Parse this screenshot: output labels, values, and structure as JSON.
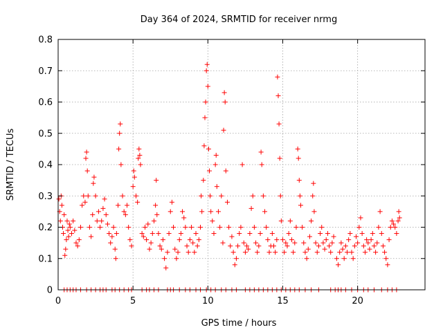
{
  "chart_data": {
    "type": "scatter",
    "title": "Day 364 of 2024, SRMTID for receiver nrmg",
    "xlabel": "GPS time / hours",
    "ylabel": "SRMTID / TECUs",
    "xlim": [
      0,
      24.5
    ],
    "ylim": [
      0,
      0.8
    ],
    "xticks": [
      0,
      5,
      10,
      15,
      20
    ],
    "xtick_labels": [
      "0",
      "5",
      "10",
      "15",
      "20"
    ],
    "yticks": [
      0,
      0.1,
      0.2,
      0.3,
      0.4,
      0.5,
      0.6,
      0.7,
      0.8
    ],
    "ytick_labels": [
      "0",
      "0.1",
      "0.2",
      "0.3",
      "0.4",
      "0.5",
      "0.6",
      "0.7",
      "0.8"
    ],
    "grid": true,
    "marker": "plus",
    "color": "#ff0000",
    "series": [
      {
        "name": "SRMTID",
        "points": [
          [
            0.05,
            0.29
          ],
          [
            0.1,
            0.25
          ],
          [
            0.15,
            0.22
          ],
          [
            0.2,
            0.3
          ],
          [
            0.25,
            0.27
          ],
          [
            0.3,
            0.2
          ],
          [
            0.35,
            0.18
          ],
          [
            0.4,
            0.24
          ],
          [
            0.45,
            0.11
          ],
          [
            0.5,
            0.13
          ],
          [
            0.55,
            0.16
          ],
          [
            0.6,
            0.22
          ],
          [
            0.65,
            0.19
          ],
          [
            0.7,
            0.17
          ],
          [
            0.75,
            0.21
          ],
          [
            0.8,
            0.2
          ],
          [
            0.9,
            0.18
          ],
          [
            1.0,
            0.22
          ],
          [
            1.1,
            0.19
          ],
          [
            1.2,
            0.15
          ],
          [
            1.3,
            0.14
          ],
          [
            1.4,
            0.16
          ],
          [
            1.5,
            0.2
          ],
          [
            1.6,
            0.27
          ],
          [
            1.7,
            0.3
          ],
          [
            1.8,
            0.28
          ],
          [
            1.85,
            0.42
          ],
          [
            1.9,
            0.44
          ],
          [
            1.95,
            0.38
          ],
          [
            2.0,
            0.3
          ],
          [
            2.1,
            0.2
          ],
          [
            2.2,
            0.17
          ],
          [
            2.3,
            0.24
          ],
          [
            2.35,
            0.34
          ],
          [
            2.4,
            0.36
          ],
          [
            2.5,
            0.3
          ],
          [
            2.6,
            0.22
          ],
          [
            2.7,
            0.25
          ],
          [
            2.8,
            0.2
          ],
          [
            2.9,
            0.22
          ],
          [
            3.0,
            0.26
          ],
          [
            3.1,
            0.29
          ],
          [
            3.2,
            0.24
          ],
          [
            3.3,
            0.21
          ],
          [
            3.4,
            0.18
          ],
          [
            3.5,
            0.15
          ],
          [
            3.6,
            0.17
          ],
          [
            3.7,
            0.2
          ],
          [
            3.8,
            0.13
          ],
          [
            3.85,
            0.1
          ],
          [
            3.9,
            0.18
          ],
          [
            4.0,
            0.27
          ],
          [
            4.05,
            0.45
          ],
          [
            4.1,
            0.5
          ],
          [
            4.15,
            0.53
          ],
          [
            4.2,
            0.4
          ],
          [
            4.3,
            0.3
          ],
          [
            4.4,
            0.25
          ],
          [
            4.5,
            0.24
          ],
          [
            4.6,
            0.27
          ],
          [
            4.7,
            0.2
          ],
          [
            4.8,
            0.16
          ],
          [
            4.9,
            0.14
          ],
          [
            5.0,
            0.33
          ],
          [
            5.05,
            0.38
          ],
          [
            5.1,
            0.36
          ],
          [
            5.2,
            0.3
          ],
          [
            5.3,
            0.28
          ],
          [
            5.35,
            0.42
          ],
          [
            5.4,
            0.45
          ],
          [
            5.45,
            0.43
          ],
          [
            5.5,
            0.4
          ],
          [
            5.6,
            0.18
          ],
          [
            5.7,
            0.17
          ],
          [
            5.8,
            0.2
          ],
          [
            5.9,
            0.16
          ],
          [
            6.0,
            0.21
          ],
          [
            6.1,
            0.13
          ],
          [
            6.2,
            0.15
          ],
          [
            6.3,
            0.18
          ],
          [
            6.4,
            0.22
          ],
          [
            6.5,
            0.27
          ],
          [
            6.55,
            0.35
          ],
          [
            6.6,
            0.24
          ],
          [
            6.7,
            0.18
          ],
          [
            6.8,
            0.14
          ],
          [
            6.9,
            0.13
          ],
          [
            7.0,
            0.16
          ],
          [
            7.1,
            0.1
          ],
          [
            7.2,
            0.07
          ],
          [
            7.3,
            0.12
          ],
          [
            7.4,
            0.18
          ],
          [
            7.5,
            0.25
          ],
          [
            7.6,
            0.28
          ],
          [
            7.7,
            0.2
          ],
          [
            7.8,
            0.13
          ],
          [
            7.9,
            0.1
          ],
          [
            8.0,
            0.12
          ],
          [
            8.1,
            0.16
          ],
          [
            8.2,
            0.18
          ],
          [
            8.3,
            0.25
          ],
          [
            8.4,
            0.23
          ],
          [
            8.5,
            0.2
          ],
          [
            8.6,
            0.14
          ],
          [
            8.7,
            0.12
          ],
          [
            8.8,
            0.16
          ],
          [
            8.9,
            0.2
          ],
          [
            9.0,
            0.15
          ],
          [
            9.1,
            0.12
          ],
          [
            9.2,
            0.18
          ],
          [
            9.3,
            0.14
          ],
          [
            9.4,
            0.16
          ],
          [
            9.5,
            0.2
          ],
          [
            9.55,
            0.3
          ],
          [
            9.6,
            0.25
          ],
          [
            9.7,
            0.35
          ],
          [
            9.75,
            0.46
          ],
          [
            9.8,
            0.55
          ],
          [
            9.85,
            0.6
          ],
          [
            9.9,
            0.7
          ],
          [
            9.95,
            0.72
          ],
          [
            10.0,
            0.65
          ],
          [
            10.05,
            0.45
          ],
          [
            10.1,
            0.38
          ],
          [
            10.15,
            0.3
          ],
          [
            10.2,
            0.25
          ],
          [
            10.3,
            0.22
          ],
          [
            10.4,
            0.18
          ],
          [
            10.5,
            0.4
          ],
          [
            10.55,
            0.43
          ],
          [
            10.6,
            0.33
          ],
          [
            10.7,
            0.25
          ],
          [
            10.8,
            0.2
          ],
          [
            10.9,
            0.3
          ],
          [
            11.0,
            0.15
          ],
          [
            11.05,
            0.51
          ],
          [
            11.1,
            0.63
          ],
          [
            11.15,
            0.6
          ],
          [
            11.2,
            0.38
          ],
          [
            11.3,
            0.28
          ],
          [
            11.4,
            0.2
          ],
          [
            11.5,
            0.14
          ],
          [
            11.6,
            0.17
          ],
          [
            11.7,
            0.12
          ],
          [
            11.8,
            0.08
          ],
          [
            11.9,
            0.1
          ],
          [
            12.0,
            0.14
          ],
          [
            12.1,
            0.18
          ],
          [
            12.2,
            0.2
          ],
          [
            12.3,
            0.4
          ],
          [
            12.4,
            0.15
          ],
          [
            12.5,
            0.12
          ],
          [
            12.6,
            0.14
          ],
          [
            12.7,
            0.13
          ],
          [
            12.8,
            0.18
          ],
          [
            12.9,
            0.26
          ],
          [
            13.0,
            0.3
          ],
          [
            13.1,
            0.2
          ],
          [
            13.2,
            0.15
          ],
          [
            13.3,
            0.12
          ],
          [
            13.4,
            0.14
          ],
          [
            13.5,
            0.18
          ],
          [
            13.55,
            0.44
          ],
          [
            13.6,
            0.4
          ],
          [
            13.7,
            0.3
          ],
          [
            13.8,
            0.25
          ],
          [
            13.9,
            0.2
          ],
          [
            14.0,
            0.16
          ],
          [
            14.1,
            0.12
          ],
          [
            14.2,
            0.14
          ],
          [
            14.3,
            0.18
          ],
          [
            14.4,
            0.14
          ],
          [
            14.5,
            0.12
          ],
          [
            14.6,
            0.16
          ],
          [
            14.65,
            0.68
          ],
          [
            14.7,
            0.62
          ],
          [
            14.75,
            0.53
          ],
          [
            14.8,
            0.42
          ],
          [
            14.85,
            0.3
          ],
          [
            14.9,
            0.22
          ],
          [
            15.0,
            0.16
          ],
          [
            15.1,
            0.12
          ],
          [
            15.2,
            0.15
          ],
          [
            15.3,
            0.14
          ],
          [
            15.4,
            0.18
          ],
          [
            15.5,
            0.22
          ],
          [
            15.6,
            0.16
          ],
          [
            15.7,
            0.12
          ],
          [
            15.8,
            0.15
          ],
          [
            15.9,
            0.2
          ],
          [
            16.0,
            0.45
          ],
          [
            16.05,
            0.42
          ],
          [
            16.1,
            0.35
          ],
          [
            16.15,
            0.3
          ],
          [
            16.2,
            0.27
          ],
          [
            16.3,
            0.2
          ],
          [
            16.4,
            0.15
          ],
          [
            16.5,
            0.12
          ],
          [
            16.6,
            0.1
          ],
          [
            16.7,
            0.13
          ],
          [
            16.8,
            0.17
          ],
          [
            16.9,
            0.22
          ],
          [
            17.0,
            0.3
          ],
          [
            17.05,
            0.34
          ],
          [
            17.1,
            0.25
          ],
          [
            17.2,
            0.15
          ],
          [
            17.3,
            0.12
          ],
          [
            17.4,
            0.14
          ],
          [
            17.5,
            0.18
          ],
          [
            17.6,
            0.2
          ],
          [
            17.7,
            0.15
          ],
          [
            17.8,
            0.13
          ],
          [
            17.9,
            0.16
          ],
          [
            18.0,
            0.18
          ],
          [
            18.1,
            0.14
          ],
          [
            18.2,
            0.12
          ],
          [
            18.3,
            0.15
          ],
          [
            18.4,
            0.17
          ],
          [
            18.6,
            0.1
          ],
          [
            18.7,
            0.08
          ],
          [
            18.8,
            0.12
          ],
          [
            18.9,
            0.15
          ],
          [
            19.0,
            0.13
          ],
          [
            19.1,
            0.1
          ],
          [
            19.2,
            0.14
          ],
          [
            19.3,
            0.12
          ],
          [
            19.4,
            0.16
          ],
          [
            19.5,
            0.18
          ],
          [
            19.6,
            0.12
          ],
          [
            19.7,
            0.1
          ],
          [
            19.8,
            0.14
          ],
          [
            19.9,
            0.17
          ],
          [
            20.0,
            0.15
          ],
          [
            20.1,
            0.2
          ],
          [
            20.2,
            0.23
          ],
          [
            20.3,
            0.18
          ],
          [
            20.4,
            0.14
          ],
          [
            20.5,
            0.12
          ],
          [
            20.6,
            0.16
          ],
          [
            20.7,
            0.15
          ],
          [
            20.8,
            0.13
          ],
          [
            20.9,
            0.16
          ],
          [
            21.0,
            0.18
          ],
          [
            21.1,
            0.14
          ],
          [
            21.2,
            0.12
          ],
          [
            21.3,
            0.15
          ],
          [
            21.4,
            0.2
          ],
          [
            21.5,
            0.25
          ],
          [
            21.6,
            0.18
          ],
          [
            21.7,
            0.14
          ],
          [
            21.8,
            0.12
          ],
          [
            21.9,
            0.1
          ],
          [
            22.0,
            0.08
          ],
          [
            22.1,
            0.16
          ],
          [
            22.2,
            0.2
          ],
          [
            22.3,
            0.22
          ],
          [
            22.4,
            0.21
          ],
          [
            22.5,
            0.2
          ],
          [
            22.6,
            0.18
          ],
          [
            22.7,
            0.22
          ],
          [
            22.75,
            0.25
          ],
          [
            22.8,
            0.23
          ]
        ],
        "zero_points": [
          0.4,
          0.6,
          0.8,
          1.0,
          1.2,
          1.5,
          1.9,
          2.2,
          2.5,
          2.8,
          3.0,
          3.2,
          3.6,
          3.8,
          4.1,
          4.4,
          4.7,
          4.9,
          5.6,
          5.9,
          6.1,
          6.4,
          6.7,
          7.3,
          7.5,
          7.7,
          8.1,
          8.5,
          8.8,
          9.2,
          9.5,
          9.9,
          10.2,
          10.5,
          10.9,
          11.2,
          11.6,
          11.9,
          12.5,
          12.8,
          13.1,
          13.4,
          13.7,
          14.0,
          14.3,
          14.6,
          14.9,
          15.2,
          15.5,
          15.8,
          16.1,
          16.5,
          16.9,
          17.4,
          18.2,
          18.5,
          18.7,
          18.9,
          19.2,
          19.6,
          20.0,
          20.4,
          20.7,
          21.1,
          21.6,
          22.0,
          22.3,
          22.6
        ]
      }
    ]
  }
}
